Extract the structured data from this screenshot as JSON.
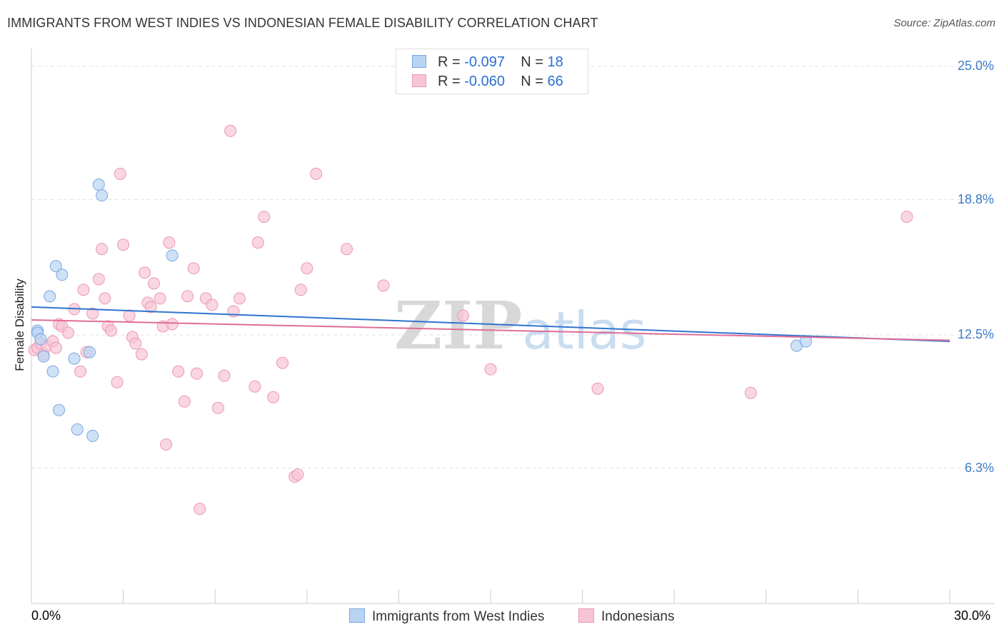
{
  "header": {
    "title": "IMMIGRANTS FROM WEST INDIES VS INDONESIAN FEMALE DISABILITY CORRELATION CHART",
    "source": "Source: ZipAtlas.com"
  },
  "watermark": {
    "zip": "ZIP",
    "atlas": "atlas"
  },
  "colors": {
    "blue_fill": "#b9d4f3",
    "blue_stroke": "#7aa7e0",
    "blue_line": "#2f74d0",
    "pink_fill": "#f8c4d4",
    "pink_stroke": "#e998b3",
    "pink_line": "#e06e97",
    "tick_label": "#3d7cc9"
  },
  "legend": {
    "series1": {
      "r_label": "R =",
      "r_value": "-0.097",
      "n_label": "N =",
      "n_value": "18"
    },
    "series2": {
      "r_label": "R =",
      "r_value": "-0.060",
      "n_label": "N =",
      "n_value": "66"
    }
  },
  "chart_data": {
    "type": "scatter",
    "title": "IMMIGRANTS FROM WEST INDIES VS INDONESIAN FEMALE DISABILITY CORRELATION CHART",
    "xlabel": "",
    "ylabel": "Female Disability",
    "xlim": [
      0,
      30
    ],
    "ylim": [
      0,
      25.5
    ],
    "x_tick_labels": [
      "0.0%",
      "30.0%"
    ],
    "y_ticks": [
      6.3,
      12.5,
      18.8,
      25.0
    ],
    "y_tick_labels": [
      "6.3%",
      "12.5%",
      "18.8%",
      "25.0%"
    ],
    "grid": true,
    "series": [
      {
        "name": "Immigrants from West Indies",
        "color": "#b9d4f3",
        "x": [
          0.2,
          0.2,
          0.4,
          0.6,
          0.3,
          0.7,
          0.8,
          1.0,
          1.4,
          1.5,
          1.9,
          2.2,
          2.0,
          2.3,
          0.9,
          4.6,
          25.0,
          25.3
        ],
        "y": [
          12.7,
          12.6,
          11.5,
          14.3,
          12.3,
          10.8,
          15.7,
          15.3,
          11.4,
          8.1,
          11.7,
          19.5,
          7.8,
          19.0,
          9.0,
          16.2,
          12.0,
          12.2
        ],
        "trend": {
          "x": [
            0,
            30
          ],
          "y": [
            13.8,
            12.2
          ]
        }
      },
      {
        "name": "Indonesians",
        "color": "#f8c4d4",
        "x": [
          0.1,
          0.2,
          0.3,
          0.4,
          0.5,
          0.7,
          0.8,
          0.9,
          1.0,
          1.2,
          1.4,
          1.6,
          1.7,
          1.8,
          2.0,
          2.2,
          2.3,
          2.4,
          2.5,
          2.6,
          2.8,
          2.9,
          3.0,
          3.2,
          3.3,
          3.4,
          3.6,
          3.7,
          3.8,
          3.9,
          4.0,
          4.2,
          4.3,
          4.4,
          4.5,
          4.6,
          4.8,
          5.0,
          5.1,
          5.3,
          5.4,
          5.5,
          5.7,
          5.9,
          6.1,
          6.3,
          6.5,
          6.6,
          6.8,
          7.3,
          7.4,
          7.6,
          7.9,
          8.2,
          8.6,
          8.7,
          8.8,
          9.0,
          9.3,
          10.3,
          11.5,
          14.1,
          15.0,
          18.5,
          23.5,
          28.6
        ],
        "y": [
          11.8,
          11.9,
          12.1,
          11.6,
          12.0,
          12.2,
          11.9,
          13.0,
          12.9,
          12.6,
          13.7,
          10.8,
          14.6,
          11.7,
          13.5,
          15.1,
          16.5,
          14.2,
          12.9,
          12.7,
          10.3,
          20.0,
          16.7,
          13.4,
          12.4,
          12.1,
          11.6,
          15.4,
          14.0,
          13.8,
          14.9,
          14.2,
          12.9,
          7.4,
          16.8,
          13.0,
          10.8,
          9.4,
          14.3,
          15.6,
          10.7,
          4.4,
          14.2,
          13.9,
          9.1,
          10.6,
          22.0,
          13.6,
          14.2,
          10.1,
          16.8,
          18.0,
          9.6,
          11.2,
          5.9,
          6.0,
          14.6,
          15.6,
          20.0,
          16.5,
          14.8,
          13.4,
          10.9,
          10.0,
          9.8,
          18.0
        ],
        "trend": {
          "x": [
            0,
            30
          ],
          "y": [
            13.2,
            12.25
          ]
        }
      }
    ]
  }
}
